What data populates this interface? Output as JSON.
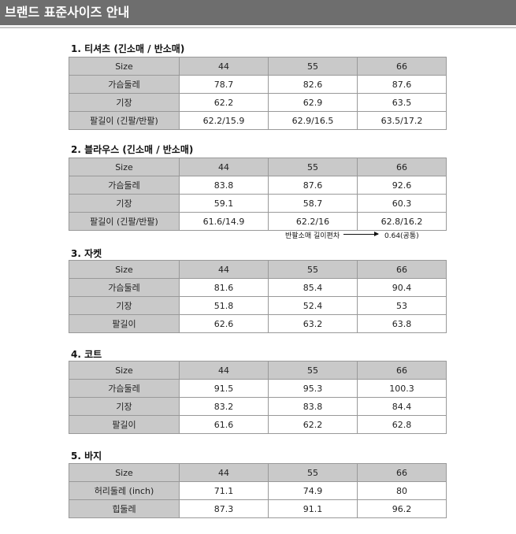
{
  "header": {
    "title": "브랜드 표준사이즈 안내"
  },
  "sections": [
    {
      "title": "1. 티셔츠 (긴소매 / 반소매)",
      "table": {
        "header": [
          "Size",
          "44",
          "55",
          "66"
        ],
        "rows": [
          [
            "가슴둘레",
            "78.7",
            "82.6",
            "87.6"
          ],
          [
            "기장",
            "62.2",
            "62.9",
            "63.5"
          ],
          [
            "팔길이 (긴팔/반팔)",
            "62.2/15.9",
            "62.9/16.5",
            "63.5/17.2"
          ]
        ]
      }
    },
    {
      "title": "2. 블라우스 (긴소매 / 반소매)",
      "table": {
        "header": [
          "Size",
          "44",
          "55",
          "66"
        ],
        "rows": [
          [
            "가슴둘레",
            "83.8",
            "87.6",
            "92.6"
          ],
          [
            "기장",
            "59.1",
            "58.7",
            "60.3"
          ],
          [
            "팔길이 (긴팔/반팔)",
            "61.6/14.9",
            "62.2/16",
            "62.8/16.2"
          ]
        ]
      },
      "note": {
        "label": "반팔소매 길이편차",
        "value": "0.64(공통)"
      }
    },
    {
      "title": "3. 자켓",
      "table": {
        "header": [
          "Size",
          "44",
          "55",
          "66"
        ],
        "rows": [
          [
            "가슴둘레",
            "81.6",
            "85.4",
            "90.4"
          ],
          [
            "기장",
            "51.8",
            "52.4",
            "53"
          ],
          [
            "팔길이",
            "62.6",
            "63.2",
            "63.8"
          ]
        ]
      }
    },
    {
      "title": "4. 코트",
      "table": {
        "header": [
          "Size",
          "44",
          "55",
          "66"
        ],
        "rows": [
          [
            "가슴둘레",
            "91.5",
            "95.3",
            "100.3"
          ],
          [
            "기장",
            "83.2",
            "83.8",
            "84.4"
          ],
          [
            "팔길이",
            "61.6",
            "62.2",
            "62.8"
          ]
        ]
      }
    },
    {
      "title": "5. 바지",
      "table": {
        "header": [
          "Size",
          "44",
          "55",
          "66"
        ],
        "rows": [
          [
            "허리둘레 (inch)",
            "71.1",
            "74.9",
            "80"
          ],
          [
            "힙둘레",
            "87.3",
            "91.1",
            "96.2"
          ]
        ]
      }
    }
  ]
}
